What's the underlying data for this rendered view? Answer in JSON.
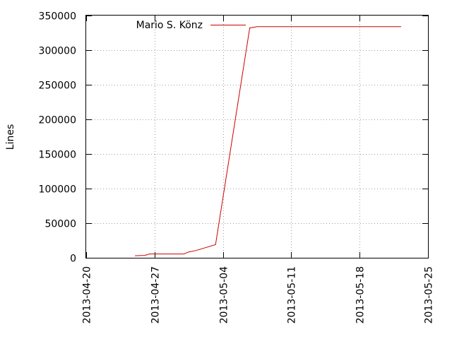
{
  "chart_data": {
    "type": "line",
    "title": "",
    "xlabel": "",
    "ylabel": "Lines",
    "xlim": [
      "2013-04-20",
      "2013-05-25"
    ],
    "ylim": [
      0,
      350000
    ],
    "x_ticks": [
      "2013-04-20",
      "2013-04-27",
      "2013-05-04",
      "2013-05-11",
      "2013-05-18",
      "2013-05-25"
    ],
    "y_ticks": [
      0,
      50000,
      100000,
      150000,
      200000,
      250000,
      300000,
      350000
    ],
    "y_tick_labels": [
      "0",
      "50000",
      "100000",
      "150000",
      "200000",
      "250000",
      "300000",
      "350000"
    ],
    "grid": true,
    "legend": "top-left",
    "series": [
      {
        "name": "Mario S. Könz",
        "color": "#cc0000",
        "points": [
          {
            "x": "2013-04-25",
            "y": 3000
          },
          {
            "x": "2013-04-26",
            "y": 3500
          },
          {
            "x": "2013-04-26T12:00",
            "y": 5500
          },
          {
            "x": "2013-04-30",
            "y": 5500
          },
          {
            "x": "2013-04-30T12:00",
            "y": 8500
          },
          {
            "x": "2013-05-01T06:00",
            "y": 10500
          },
          {
            "x": "2013-05-03T06:00",
            "y": 19000
          },
          {
            "x": "2013-05-06T18:00",
            "y": 332000
          },
          {
            "x": "2013-05-07T12:00",
            "y": 334000
          },
          {
            "x": "2013-05-22T06:00",
            "y": 334000
          }
        ]
      }
    ]
  }
}
